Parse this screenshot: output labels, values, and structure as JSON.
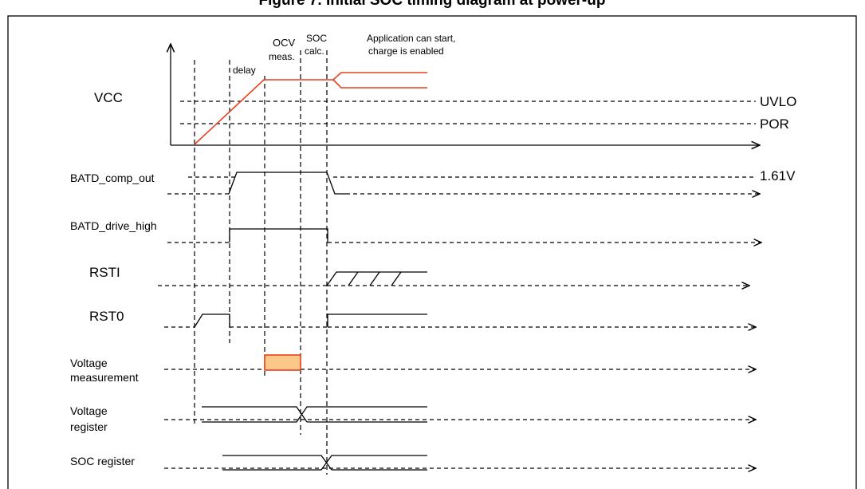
{
  "figure": {
    "title": "Figure 7. Initial SOC timing diagram at power-up",
    "phases": {
      "delay": "delay",
      "ocv_line1": "OCV",
      "ocv_line2": "meas.",
      "soc_line1": "SOC",
      "soc_line2": "calc.",
      "app_line1": "Application can start,",
      "app_line2": "charge is enabled"
    },
    "signals": {
      "vcc": "VCC",
      "batd_comp_out": "BATD_comp_out",
      "batd_drive_high": "BATD_drive_high",
      "rsti": "RSTI",
      "rst0": "RST0",
      "voltage_measurement_line1": "Voltage",
      "voltage_measurement_line2": "measurement",
      "voltage_register_line1": "Voltage",
      "voltage_register_line2": "register",
      "soc_register": "SOC register"
    },
    "thresholds": {
      "uvlo": "UVLO",
      "por": "POR",
      "batd_level": "1.61V"
    },
    "colors": {
      "vcc_trace": "#e8401c",
      "measurement_fill": "#fbc88a",
      "measurement_border": "#e8401c"
    }
  }
}
